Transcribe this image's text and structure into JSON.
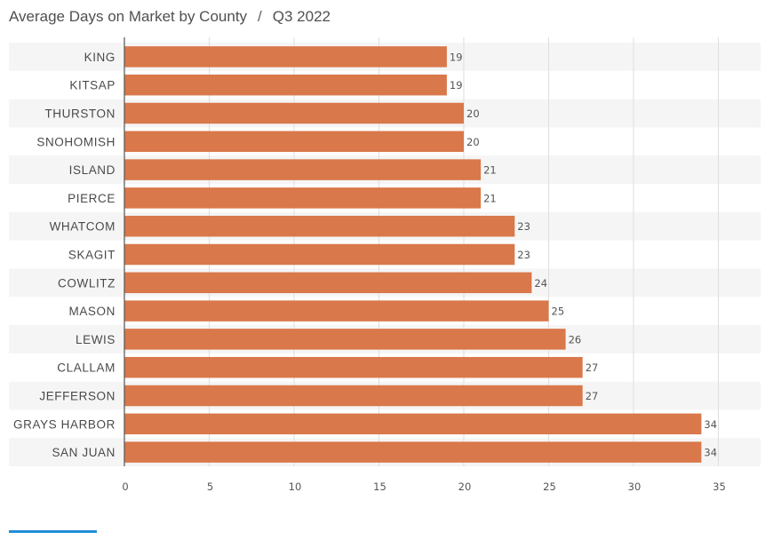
{
  "header": {
    "title": "Average Days on Market by County",
    "separator": "/",
    "period": "Q3 2022"
  },
  "colors": {
    "bar": "#d9784a",
    "band": "#f5f5f5",
    "grid": "#dedede",
    "axis": "#555555",
    "accent": "#1f8fd6"
  },
  "chart_data": {
    "type": "bar",
    "orientation": "horizontal",
    "title": "Average Days on Market by County",
    "subtitle": "Q3 2022",
    "xlabel": "",
    "ylabel": "",
    "categories": [
      "KING",
      "KITSAP",
      "THURSTON",
      "SNOHOMISH",
      "ISLAND",
      "PIERCE",
      "WHATCOM",
      "SKAGIT",
      "COWLITZ",
      "MASON",
      "LEWIS",
      "CLALLAM",
      "JEFFERSON",
      "GRAYS HARBOR",
      "SAN JUAN"
    ],
    "values": [
      19,
      19,
      20,
      20,
      21,
      21,
      23,
      23,
      24,
      25,
      26,
      27,
      27,
      34,
      34
    ],
    "xlim": [
      0,
      37
    ],
    "xticks": [
      0,
      5,
      10,
      15,
      20,
      25,
      30,
      35
    ],
    "grid": true,
    "legend": "none"
  }
}
